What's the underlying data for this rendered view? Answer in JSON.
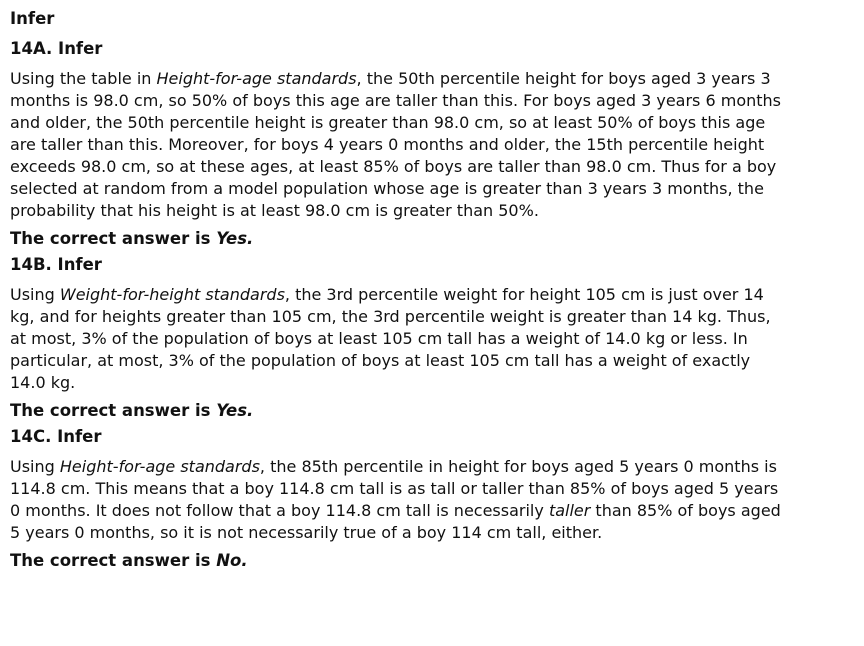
{
  "title": "Infer",
  "sections": [
    {
      "heading": "14A. Infer",
      "paragraph": [
        {
          "text": "Using the table in "
        },
        {
          "text": "Height-for-age standards",
          "italic": true
        },
        {
          "text": ", the 50th percentile height for boys aged 3 years 3 months is 98.0 cm, so 50% of boys this age are taller than this. For boys aged 3 years 6 months and older, the 50th percentile height is greater than 98.0 cm, so at least 50% of boys this age are taller than this. Moreover, for boys 4 years 0 months and older, the 15th percentile height exceeds 98.0 cm, so at these ages, at least 85% of boys are taller than 98.0 cm. Thus for a boy selected at random from a model population whose age is greater than 3 years 3 months, the probability that his height is at least 98.0 cm is greater than 50%."
        }
      ],
      "answer": {
        "label": "The correct answer is",
        "value": "Yes."
      }
    },
    {
      "heading": "14B. Infer",
      "paragraph": [
        {
          "text": "Using "
        },
        {
          "text": "Weight-for-height standards",
          "italic": true
        },
        {
          "text": ", the 3rd percentile weight for height 105 cm is just over 14 kg, and for heights greater than 105 cm, the 3rd percentile weight is greater than 14 kg. Thus, at most, 3% of the population of boys at least 105 cm tall has a weight of 14.0 kg or less. In particular, at most, 3% of the population of boys at least 105 cm tall has a weight of exactly 14.0 kg."
        }
      ],
      "answer": {
        "label": "The correct answer is",
        "value": "Yes."
      }
    },
    {
      "heading": "14C. Infer",
      "paragraph": [
        {
          "text": "Using "
        },
        {
          "text": "Height-for-age standards",
          "italic": true
        },
        {
          "text": ", the 85th percentile in height for boys aged 5 years 0 months is 114.8 cm. This means that a boy 114.8 cm tall is as tall or taller than 85% of boys aged 5 years 0 months. It does not follow that a boy 114.8 cm tall is necessarily "
        },
        {
          "text": "taller",
          "italic": true
        },
        {
          "text": " than 85% of boys aged 5 years 0 months, so it is not necessarily true of a boy 114 cm tall, either."
        }
      ],
      "answer": {
        "label": "The correct answer is",
        "value": "No."
      }
    }
  ]
}
